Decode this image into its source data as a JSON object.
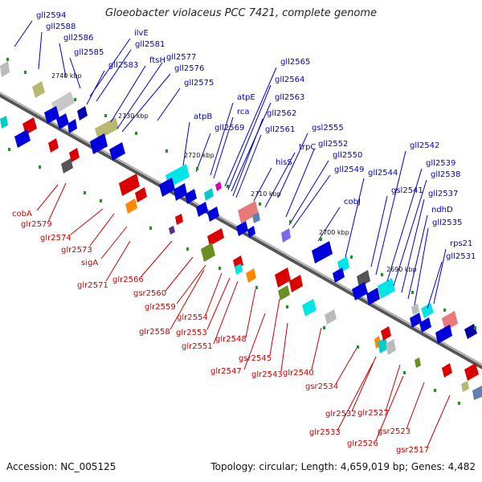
{
  "title": "Gloeobacter violaceus PCC 7421, complete genome",
  "footer": {
    "accession": "Accession: NC_005125",
    "summary": "Topology: circular; Length: 4,659,019 bp; Genes: 4,482"
  },
  "colors": {
    "forward": "#0000cc",
    "reverse": "#cc0000",
    "axis": "#888888"
  },
  "ticks": [
    "2740 kbp",
    "2730 kbp",
    "2720 kbp",
    "2710 kbp",
    "2700 kbp",
    "2690 kbp"
  ],
  "top_labels": [
    "gll2594",
    "gll2588",
    "gll2586",
    "gll2585",
    "ilvE",
    "gll2581",
    "gll2583",
    "ftsH",
    "gll2577",
    "gll2576",
    "gll2575",
    "atpB",
    "atpE",
    "rca",
    "gll2569",
    "gll2565",
    "gll2564",
    "gll2563",
    "gll2562",
    "gll2561",
    "gsl2555",
    "trpC",
    "gll2552",
    "hisS",
    "gll2550",
    "gll2549",
    "cobJ",
    "gll2544",
    "gsl2541",
    "gll2542",
    "gll2539",
    "gll2538",
    "gll2537",
    "ndhD",
    "gll2535",
    "rps21",
    "gll2531"
  ],
  "bottom_labels": [
    "cobA",
    "glr2579",
    "glr2574",
    "glr2573",
    "sigA",
    "glr2571",
    "glr2566",
    "gsr2560",
    "glr2559",
    "glr2558",
    "glr2554",
    "glr2553",
    "glr2551",
    "glr2548",
    "gsr2545",
    "glr2547",
    "glr2543",
    "glr2540",
    "gsr2534",
    "glr2532",
    "glr2527",
    "glr2533",
    "glr2526",
    "gsr2523",
    "gsr2517"
  ]
}
